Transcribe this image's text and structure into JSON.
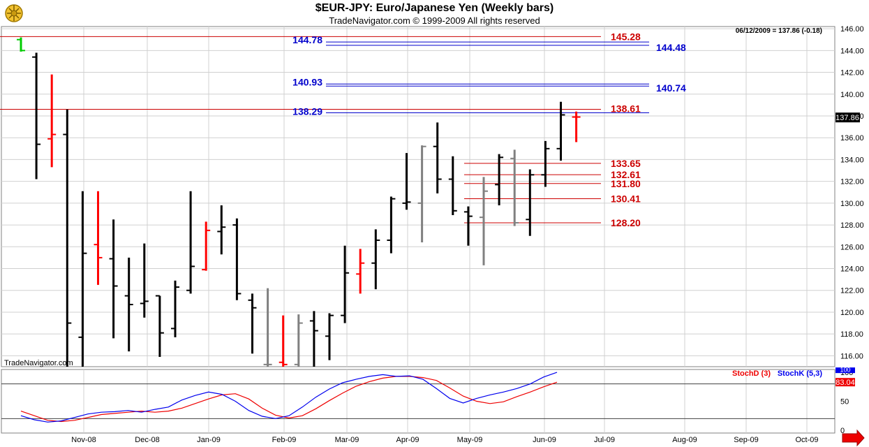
{
  "header": {
    "title": "$EUR-JPY:  Euro/Japanese Yen  (Weekly bars)",
    "subtitle": "TradeNavigator.com © 1999-2009 All rights reserved"
  },
  "price_panel": {
    "info": "06/12/2009 = 137.86 (-0.18)",
    "last_price": "137.86",
    "watermark": "TradeNavigator.com"
  },
  "stoch_panel": {
    "legend_d": "StochD (3)",
    "legend_k": "StochK (5,3)",
    "last_d": "83.04",
    "last_k": "100"
  },
  "colors": {
    "up": "#000000",
    "down": "#ff0000",
    "neutral": "#808080",
    "first_bar": "#00cc00",
    "fib_blue": "#0000cc",
    "fib_red": "#cc0000",
    "stoch_d": "#ee0000",
    "stoch_k": "#0000ee",
    "grid": "#d0d0d0",
    "border": "#808080"
  },
  "chart_data": [
    {
      "type": "ohlc",
      "title": "$EUR-JPY:  Euro/Japanese Yen  (Weekly bars)",
      "ylim": [
        115,
        146.2
      ],
      "y_ticks": [
        116,
        118,
        120,
        122,
        124,
        126,
        128,
        130,
        132,
        134,
        136,
        138,
        140,
        142,
        144,
        146
      ],
      "x_ticks": [
        "Nov-08",
        "Dec-08",
        "Jan-09",
        "Feb-09",
        "Mar-09",
        "Apr-09",
        "May-09",
        "Jun-09",
        "Jul-09",
        "Aug-09",
        "Sep-09",
        "Oct-09"
      ],
      "grid": true,
      "bars": [
        {
          "o": 145.0,
          "h": 145.2,
          "l": 143.9,
          "c": 144.0,
          "col": "first_bar"
        },
        {
          "o": 143.4,
          "h": 143.8,
          "l": 132.2,
          "c": 135.4,
          "col": "up"
        },
        {
          "o": 135.9,
          "h": 141.8,
          "l": 133.3,
          "c": 136.3,
          "col": "down"
        },
        {
          "o": 136.3,
          "h": 138.6,
          "l": 113.0,
          "c": 119.0,
          "col": "up"
        },
        {
          "o": 117.7,
          "h": 131.1,
          "l": 113.0,
          "c": 125.4,
          "col": "up"
        },
        {
          "o": 126.2,
          "h": 131.1,
          "l": 122.5,
          "c": 125.0,
          "col": "down"
        },
        {
          "o": 124.9,
          "h": 128.5,
          "l": 117.6,
          "c": 122.4,
          "col": "up"
        },
        {
          "o": 121.5,
          "h": 125.0,
          "l": 116.4,
          "c": 120.7,
          "col": "up"
        },
        {
          "o": 120.8,
          "h": 126.3,
          "l": 119.5,
          "c": 121.0,
          "col": "up"
        },
        {
          "o": 121.5,
          "h": 121.5,
          "l": 115.9,
          "c": 118.1,
          "col": "up"
        },
        {
          "o": 118.5,
          "h": 122.9,
          "l": 117.7,
          "c": 122.3,
          "col": "up"
        },
        {
          "o": 122.0,
          "h": 131.1,
          "l": 121.7,
          "c": 124.2,
          "col": "up"
        },
        {
          "o": 123.9,
          "h": 128.3,
          "l": 123.8,
          "c": 127.5,
          "col": "down"
        },
        {
          "o": 127.4,
          "h": 129.8,
          "l": 125.3,
          "c": 127.8,
          "col": "up"
        },
        {
          "o": 128.0,
          "h": 128.6,
          "l": 121.1,
          "c": 121.7,
          "col": "up"
        },
        {
          "o": 121.1,
          "h": 121.7,
          "l": 116.2,
          "c": 120.4,
          "col": "up"
        },
        {
          "o": 115.2,
          "h": 122.2,
          "l": 115.0,
          "c": 115.2,
          "col": "neutral"
        },
        {
          "o": 115.4,
          "h": 119.7,
          "l": 115.0,
          "c": 115.2,
          "col": "down"
        },
        {
          "o": 115.2,
          "h": 119.8,
          "l": 115.0,
          "c": 119.0,
          "col": "neutral"
        },
        {
          "o": 119.2,
          "h": 120.1,
          "l": 115.0,
          "c": 118.3,
          "col": "up"
        },
        {
          "o": 117.8,
          "h": 119.9,
          "l": 115.6,
          "c": 119.7,
          "col": "up"
        },
        {
          "o": 119.7,
          "h": 126.1,
          "l": 119.0,
          "c": 123.6,
          "col": "up"
        },
        {
          "o": 123.5,
          "h": 125.8,
          "l": 121.7,
          "c": 124.5,
          "col": "down"
        },
        {
          "o": 124.5,
          "h": 127.6,
          "l": 122.1,
          "c": 126.6,
          "col": "up"
        },
        {
          "o": 126.6,
          "h": 130.6,
          "l": 125.4,
          "c": 130.4,
          "col": "up"
        },
        {
          "o": 130.0,
          "h": 134.6,
          "l": 129.4,
          "c": 130.1,
          "col": "up"
        },
        {
          "o": 130.0,
          "h": 135.3,
          "l": 126.4,
          "c": 135.2,
          "col": "neutral"
        },
        {
          "o": 135.2,
          "h": 137.4,
          "l": 130.9,
          "c": 132.2,
          "col": "up"
        },
        {
          "o": 132.2,
          "h": 134.3,
          "l": 128.9,
          "c": 129.3,
          "col": "up"
        },
        {
          "o": 129.2,
          "h": 129.7,
          "l": 126.1,
          "c": 128.8,
          "col": "up"
        },
        {
          "o": 128.7,
          "h": 132.4,
          "l": 124.3,
          "c": 131.1,
          "col": "neutral"
        },
        {
          "o": 131.7,
          "h": 134.5,
          "l": 129.8,
          "c": 134.2,
          "col": "up"
        },
        {
          "o": 134.1,
          "h": 134.9,
          "l": 127.9,
          "c": 128.2,
          "col": "neutral"
        },
        {
          "o": 128.5,
          "h": 133.1,
          "l": 127.0,
          "c": 132.6,
          "col": "up"
        },
        {
          "o": 132.6,
          "h": 135.7,
          "l": 131.5,
          "c": 135.0,
          "col": "up"
        },
        {
          "o": 135.0,
          "h": 139.3,
          "l": 133.9,
          "c": 138.1,
          "col": "up"
        },
        {
          "o": 137.9,
          "h": 138.4,
          "l": 135.6,
          "c": 137.9,
          "col": "down"
        }
      ],
      "levels": [
        {
          "value": "145.28",
          "y": 145.28,
          "color": "fib_red",
          "label_side": "right",
          "x0": "full",
          "x1": "861"
        },
        {
          "value": "144.78",
          "y": 144.78,
          "color": "fib_blue",
          "label_side": "left"
        },
        {
          "value": "144.48",
          "y": 144.48,
          "color": "fib_blue",
          "label_side": "right"
        },
        {
          "value": "140.93",
          "y": 140.93,
          "color": "fib_blue",
          "label_side": "left"
        },
        {
          "value": "140.74",
          "y": 140.74,
          "color": "fib_blue",
          "label_side": "right"
        },
        {
          "value": "138.61",
          "y": 138.61,
          "color": "fib_red",
          "label_side": "right"
        },
        {
          "value": "138.29",
          "y": 138.29,
          "color": "fib_blue",
          "label_side": "left"
        },
        {
          "value": "133.65",
          "y": 133.65,
          "color": "fib_red",
          "label_side": "right"
        },
        {
          "value": "132.61",
          "y": 132.61,
          "color": "fib_red",
          "label_side": "right"
        },
        {
          "value": "131.80",
          "y": 131.8,
          "color": "fib_red",
          "label_side": "right"
        },
        {
          "value": "130.41",
          "y": 130.41,
          "color": "fib_red",
          "label_side": "right"
        },
        {
          "value": "128.20",
          "y": 128.2,
          "color": "fib_red",
          "label_side": "right"
        }
      ]
    },
    {
      "type": "line",
      "ylim": [
        -5,
        105
      ],
      "y_ticks": [
        0,
        50,
        100
      ],
      "reference_lines": [
        20,
        80
      ],
      "series": [
        {
          "name": "StochD (3)",
          "color": "stoch_d",
          "values": [
            33,
            25,
            17,
            15,
            17,
            22,
            27,
            29,
            31,
            33,
            31,
            33,
            38,
            46,
            54,
            61,
            63,
            54,
            38,
            26,
            21,
            25,
            37,
            51,
            64,
            76,
            84,
            90,
            93,
            93,
            91,
            86,
            73,
            59,
            50,
            46,
            49,
            58,
            66,
            75,
            83
          ]
        },
        {
          "name": "StochK (5,3)",
          "color": "stoch_k",
          "values": [
            25,
            18,
            14,
            16,
            22,
            28,
            31,
            32,
            34,
            31,
            36,
            40,
            52,
            60,
            66,
            62,
            50,
            34,
            24,
            20,
            25,
            40,
            57,
            71,
            82,
            88,
            93,
            96,
            93,
            94,
            88,
            72,
            55,
            47,
            55,
            61,
            66,
            72,
            80,
            92,
            100
          ]
        }
      ]
    }
  ]
}
